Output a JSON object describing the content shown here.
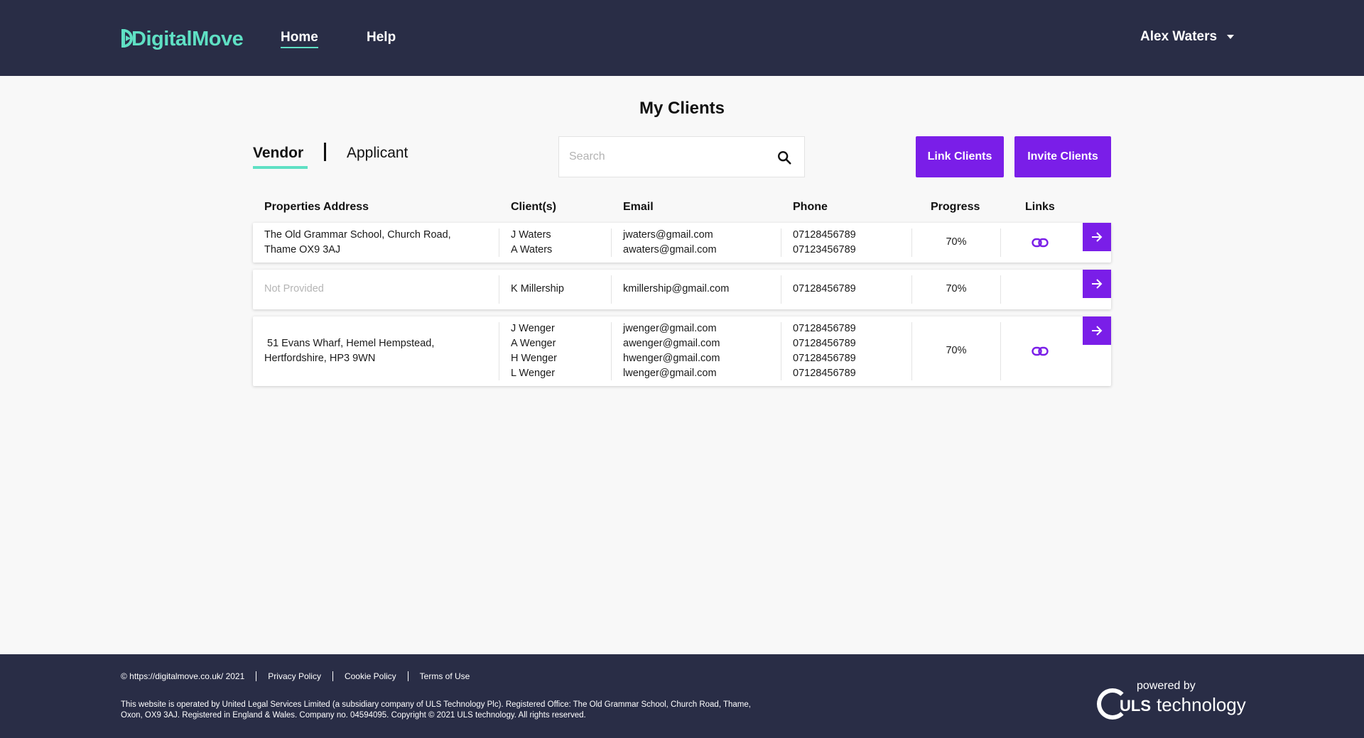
{
  "header": {
    "logo": "DigitalMove",
    "nav": {
      "home": "Home",
      "help": "Help"
    },
    "user": "Alex Waters"
  },
  "page": {
    "title": "My Clients",
    "tabs": {
      "vendor": "Vendor",
      "applicant": "Applicant"
    },
    "search_placeholder": "Search",
    "buttons": {
      "link": "Link Clients",
      "invite": "Invite Clients"
    }
  },
  "table": {
    "headers": {
      "address": "Properties Address",
      "clients": "Client(s)",
      "email": "Email",
      "phone": "Phone",
      "progress": "Progress",
      "links": "Links"
    },
    "rows": [
      {
        "address1": "The Old Grammar School, Church Road,",
        "address2": "Thame OX9 3AJ",
        "clients": [
          "J Waters",
          "A Waters"
        ],
        "emails": [
          "jwaters@gmail.com",
          "awaters@gmail.com"
        ],
        "phones": [
          "07128456789",
          "07123456789"
        ],
        "progress": "70%",
        "has_link": true
      },
      {
        "address1": "Not Provided",
        "clients": [
          "K Millership"
        ],
        "emails": [
          "kmillership@gmail.com"
        ],
        "phones": [
          "07128456789"
        ],
        "progress": "70%",
        "has_link": false
      },
      {
        "address1": " 51 Evans Wharf, Hemel Hempstead,",
        "address2": "Hertfordshire, HP3 9WN",
        "clients": [
          "J Wenger",
          "A Wenger",
          "H Wenger",
          "L Wenger"
        ],
        "emails": [
          "jwenger@gmail.com",
          "awenger@gmail.com",
          "hwenger@gmail.com",
          "lwenger@gmail.com"
        ],
        "phones": [
          "07128456789",
          "07128456789",
          "07128456789",
          "07128456789"
        ],
        "progress": "70%",
        "has_link": true
      }
    ]
  },
  "footer": {
    "links": [
      "© https://digitalmove.co.uk/ 2021",
      "Privacy Policy",
      "Cookie Policy",
      "Terms of Use"
    ],
    "text": "This website is operated by United Legal Services Limited (a subsidiary company of ULS Technology Plc). Registered Office: The Old Grammar School, Church Road, Thame, Oxon, OX9 3AJ. Registered in England & Wales. Company no. 04594095. Copyright © 2021 ULS technology. All rights reserved.",
    "powered_by": "powered by",
    "uls": "ULS",
    "technology": "technology"
  },
  "colors": {
    "header_bg": "#292d46",
    "accent": "#5fe0c4",
    "primary": "#7a1ee8"
  },
  "icons": {
    "search": "search-icon",
    "go": "arrow-right-icon",
    "link": "link-icon",
    "caret": "caret-down-icon"
  }
}
